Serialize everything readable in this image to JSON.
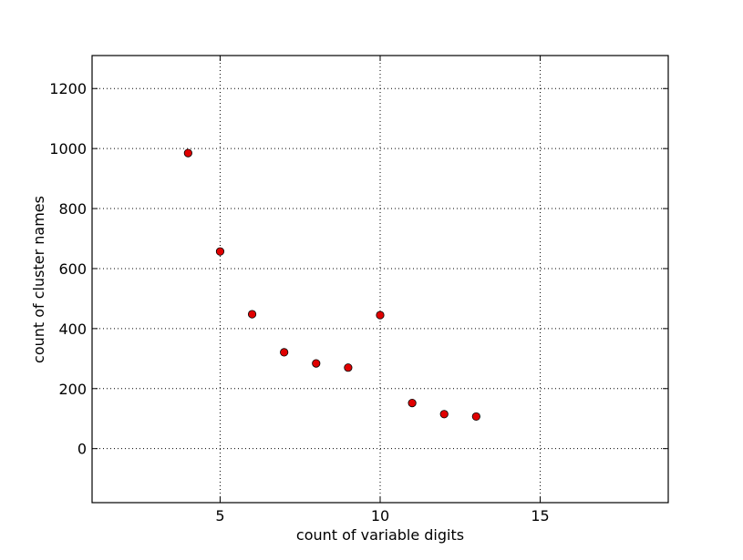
{
  "chart_data": {
    "type": "scatter",
    "xlabel": "count of variable digits",
    "ylabel": "count of cluster names",
    "xlim": [
      1,
      19
    ],
    "ylim": [
      -180,
      1310
    ],
    "xticks": [
      5,
      10,
      15
    ],
    "yticks": [
      0,
      200,
      400,
      600,
      800,
      1000,
      1200
    ],
    "xtick_labels": [
      "5",
      "10",
      "15"
    ],
    "ytick_labels": [
      "0",
      "200",
      "400",
      "600",
      "800",
      "1000",
      "1200"
    ],
    "grid": true,
    "marker_color": "#e00000",
    "marker_edge_color": "#000000",
    "points": [
      {
        "x": 4,
        "y": 985
      },
      {
        "x": 5,
        "y": 657
      },
      {
        "x": 6,
        "y": 448
      },
      {
        "x": 7,
        "y": 321
      },
      {
        "x": 8,
        "y": 284
      },
      {
        "x": 9,
        "y": 270
      },
      {
        "x": 10,
        "y": 445
      },
      {
        "x": 11,
        "y": 152
      },
      {
        "x": 12,
        "y": 115
      },
      {
        "x": 13,
        "y": 107
      }
    ]
  }
}
